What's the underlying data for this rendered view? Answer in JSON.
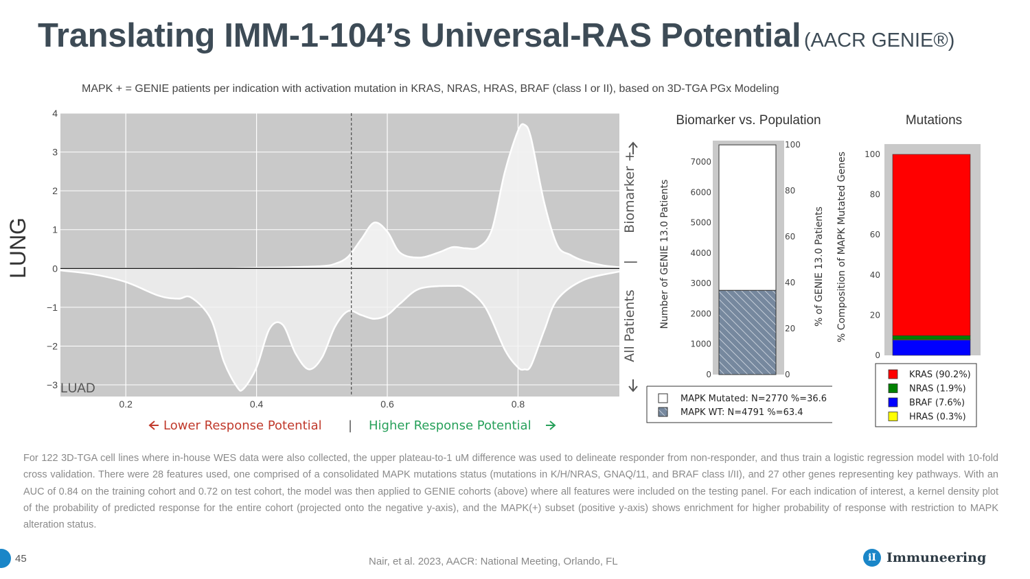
{
  "slide": {
    "title": "Translating IMM-1-104’s Universal-RAS Potential",
    "title_suffix": "(AACR GENIE®)",
    "subtitle": "MAPK + = GENIE patients per indication with activation mutation in KRAS, NRAS, HRAS, BRAF (class I or II), based on 3D-TGA PGx Modeling",
    "footnote": "For 122 3D-TGA cell lines where in-house WES data were also collected, the upper plateau-to-1 uM difference was used to delineate responder from non-responder, and thus train a logistic regression model with 10-fold cross validation. There were 28 features used, one comprised of a consolidated MAPK mutations status (mutations in K/H/NRAS, GNAQ/11, and BRAF class I/II), and 27 other genes representing key pathways. With an AUC of 0.84 on the training cohort and 0.72 on test cohort, the model was then applied to GENIE cohorts (above) where all features were included on the testing panel. For each indication of interest, a kernel density plot of the probability of predicted response for the entire cohort (projected onto the negative y-axis), and the MAPK(+) subset (positive y-axis) shows enrichment for higher probability of response with restriction to MAPK alteration status.",
    "page_number": "45",
    "citation": "Nair, et al. 2023, AACR: National Meeting, Orlando, FL",
    "logo_text": "Immuneering",
    "logo_mark": "iI"
  },
  "colors": {
    "panel_bg": "#c9c9c9",
    "density_fill": "#f2f2f2",
    "lower_arrow": "#c0392b",
    "higher_arrow": "#27a05a",
    "hatch": "#76889e",
    "kras": "#ff0000",
    "nras": "#008000",
    "braf": "#0000ff",
    "hras": "#ffff00",
    "brand": "#1a86c8"
  },
  "chart_data": [
    {
      "type": "area",
      "indication_label": "LUNG",
      "panel_label": "LUAD",
      "xlim": [
        0.1,
        0.955
      ],
      "ylim": [
        -3.3,
        4
      ],
      "xticks": [
        0.2,
        0.4,
        0.6,
        0.8
      ],
      "yticks": [
        4,
        3,
        2,
        1,
        0,
        -1,
        -2,
        -3
      ],
      "threshold_x": 0.545,
      "grid": true,
      "right_axis_label_top": "Biomarker +",
      "right_axis_divider": "|",
      "right_axis_label_bottom": "All Patients",
      "x_annotation_left": "Lower Response Potential",
      "x_annotation_divider": "|",
      "x_annotation_right": "Higher Response Potential",
      "series": [
        {
          "x": [
            0.1,
            0.15,
            0.2,
            0.25,
            0.3,
            0.35,
            0.4,
            0.45,
            0.5,
            0.52,
            0.54,
            0.56,
            0.58,
            0.6,
            0.62,
            0.65,
            0.68,
            0.7,
            0.72,
            0.74,
            0.76,
            0.78,
            0.8,
            0.81,
            0.82,
            0.84,
            0.86,
            0.88,
            0.9,
            0.93,
            0.955
          ],
          "values": [
            0,
            0,
            0,
            0,
            0,
            0,
            0.02,
            0.03,
            0.06,
            0.12,
            0.3,
            0.75,
            1.18,
            0.95,
            0.4,
            0.28,
            0.42,
            0.55,
            0.52,
            0.55,
            1.0,
            2.5,
            3.55,
            3.7,
            3.35,
            1.7,
            0.6,
            0.35,
            0.2,
            0.08,
            0.03
          ]
        },
        {
          "x": [
            0.1,
            0.15,
            0.2,
            0.25,
            0.28,
            0.3,
            0.33,
            0.35,
            0.37,
            0.38,
            0.4,
            0.42,
            0.44,
            0.46,
            0.48,
            0.5,
            0.52,
            0.54,
            0.56,
            0.58,
            0.6,
            0.62,
            0.65,
            0.7,
            0.72,
            0.75,
            0.78,
            0.8,
            0.81,
            0.82,
            0.84,
            0.86,
            0.9,
            0.955
          ],
          "values": [
            -0.05,
            -0.15,
            -0.35,
            -0.7,
            -0.78,
            -0.75,
            -1.3,
            -2.4,
            -3.05,
            -3.1,
            -2.55,
            -1.55,
            -1.45,
            -2.2,
            -2.6,
            -2.3,
            -1.5,
            -1.1,
            -1.2,
            -1.3,
            -1.2,
            -0.9,
            -0.52,
            -0.45,
            -0.52,
            -1.0,
            -2.1,
            -2.55,
            -2.6,
            -2.5,
            -1.6,
            -0.8,
            -0.3,
            -0.08
          ]
        }
      ]
    },
    {
      "type": "bar",
      "title": "Biomarker vs. Population",
      "ylabel": "Number of GENIE 13.0 Patients",
      "y2label": "% of GENIE 13.0 Patients",
      "ylim": [
        0,
        7700
      ],
      "yticks": [
        0,
        1000,
        2000,
        3000,
        4000,
        5000,
        6000,
        7000
      ],
      "y2ticks": [
        0,
        20,
        40,
        60,
        80,
        100
      ],
      "stacked": true,
      "series": [
        {
          "name": "MAPK Mutated: N=2770 %=36.6",
          "values": [
            2770
          ]
        },
        {
          "name": "MAPK WT: N=4791 %=63.4",
          "values": [
            4791
          ]
        }
      ]
    },
    {
      "type": "bar",
      "title": "Mutations",
      "ylabel": "% Composition of MAPK Mutated Genes",
      "ylim": [
        0,
        100
      ],
      "yticks": [
        0,
        20,
        40,
        60,
        80,
        100
      ],
      "stacked": true,
      "series": [
        {
          "name": "KRAS (90.2%)",
          "values": [
            90.2
          ]
        },
        {
          "name": "NRAS (1.9%)",
          "values": [
            1.9
          ]
        },
        {
          "name": "BRAF (7.6%)",
          "values": [
            7.6
          ]
        },
        {
          "name": "HRAS (0.3%)",
          "values": [
            0.3
          ]
        }
      ]
    }
  ]
}
